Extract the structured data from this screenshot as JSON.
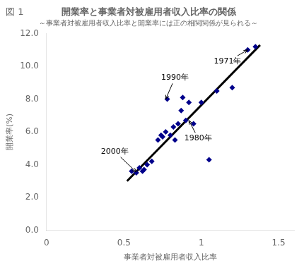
{
  "chart_data": {
    "type": "scatter",
    "fig_label": "図 1",
    "title": "開業率と事業者対被雇用者収入比率の関係",
    "subtitle": "～事業者対被雇用者収入比率と開業率には正の相関関係が見られる～",
    "x_label": "事業者対被雇用者収入比率",
    "y_label": "開業率(%)",
    "series": [
      {
        "type": "scatter",
        "marker": "diamond",
        "color": "#00008B",
        "x": [
          0.55,
          0.58,
          0.6,
          0.62,
          0.63,
          0.65,
          0.68,
          0.72,
          0.74,
          0.75,
          0.77,
          0.78,
          0.8,
          0.82,
          0.83,
          0.85,
          0.87,
          0.88,
          0.9,
          0.92,
          0.95,
          1.0,
          1.05,
          1.1,
          1.2,
          1.3,
          1.35
        ],
        "values": [
          3.6,
          3.5,
          3.8,
          3.6,
          3.7,
          4.0,
          4.2,
          5.5,
          5.8,
          5.7,
          6.0,
          8.0,
          5.8,
          6.3,
          5.5,
          6.5,
          7.3,
          8.1,
          6.7,
          7.8,
          6.5,
          7.8,
          4.3,
          8.5,
          8.7,
          11.0,
          11.2
        ]
      },
      {
        "type": "line",
        "line_style": "solid",
        "color": "#000000",
        "x": [
          0.52,
          1.38
        ],
        "values": [
          3.0,
          11.3
        ]
      }
    ],
    "xlim": [
      0,
      1.6
    ],
    "ylim": [
      0.0,
      12.0
    ],
    "xticks": [
      0,
      0.5,
      1,
      1.5
    ],
    "yticks": [
      {
        "value": 0.0,
        "label": "0.0"
      },
      {
        "value": 2.0,
        "label": "2.0"
      },
      {
        "value": 4.0,
        "label": "4.0"
      },
      {
        "value": 6.0,
        "label": "6.0"
      },
      {
        "value": 8.0,
        "label": "8.0"
      },
      {
        "value": 10.0,
        "label": "10.0"
      },
      {
        "value": 12.0,
        "label": "12.0"
      }
    ],
    "annotations": [
      {
        "text": "1990年",
        "xy": [
          0.77,
          8.0
        ],
        "xytext": [
          0.83,
          9.3
        ]
      },
      {
        "text": "1971年",
        "xy": [
          1.3,
          11.0
        ],
        "xytext": [
          1.17,
          10.3
        ]
      },
      {
        "text": "2000年",
        "xy": [
          0.58,
          3.55
        ],
        "xytext": [
          0.44,
          4.8
        ]
      },
      {
        "text": "1980年",
        "xy": [
          0.92,
          6.7
        ],
        "xytext": [
          0.98,
          5.6
        ]
      }
    ],
    "grid": false,
    "legend": false
  }
}
